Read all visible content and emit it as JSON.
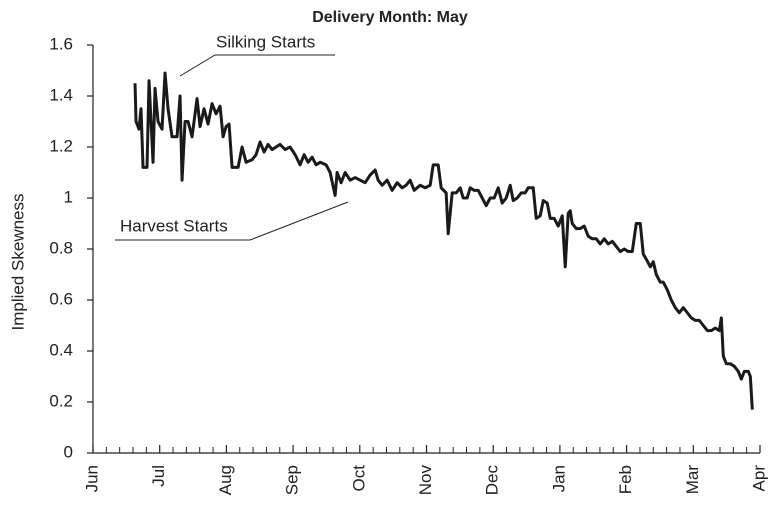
{
  "chart_data": {
    "type": "line",
    "title": "Delivery Month: May",
    "y_label": "Implied Skewness",
    "annotations": [
      "Silking Starts",
      "Harvest Starts"
    ],
    "color": "#1a1a1a",
    "xlim": [
      0,
      10
    ],
    "xticks": [
      {
        "value": 0,
        "label": "Jun"
      },
      {
        "value": 1,
        "label": "Jul"
      },
      {
        "value": 2,
        "label": "Aug"
      },
      {
        "value": 3,
        "label": "Sep"
      },
      {
        "value": 4,
        "label": "Oct"
      },
      {
        "value": 5,
        "label": "Nov"
      },
      {
        "value": 6,
        "label": "Dec"
      },
      {
        "value": 7,
        "label": "Jan"
      },
      {
        "value": 8,
        "label": "Feb"
      },
      {
        "value": 9,
        "label": "Mar"
      },
      {
        "value": 10,
        "label": "Apr"
      }
    ],
    "ylim": [
      0,
      1.6
    ],
    "yticks": [
      0,
      0.2,
      0.4,
      0.6,
      0.8,
      1,
      1.2,
      1.4,
      1.6
    ],
    "x": [
      0.63,
      0.645,
      0.69,
      0.72,
      0.75,
      0.81,
      0.84,
      0.87,
      0.9,
      0.93,
      0.975,
      1.035,
      1.08,
      1.125,
      1.185,
      1.26,
      1.305,
      1.335,
      1.38,
      1.425,
      1.485,
      1.56,
      1.605,
      1.665,
      1.725,
      1.785,
      1.845,
      1.905,
      1.95,
      1.995,
      2.04,
      2.085,
      2.175,
      2.235,
      2.295,
      2.385,
      2.445,
      2.505,
      2.565,
      2.625,
      2.685,
      2.745,
      2.805,
      2.88,
      2.955,
      3.03,
      3.105,
      3.165,
      3.225,
      3.285,
      3.345,
      3.405,
      3.495,
      3.555,
      3.63,
      3.66,
      3.72,
      3.78,
      3.855,
      3.93,
      4.005,
      4.08,
      4.155,
      4.23,
      4.275,
      4.335,
      4.41,
      4.485,
      4.56,
      4.635,
      4.695,
      4.755,
      4.815,
      4.905,
      4.98,
      5.055,
      5.1,
      5.175,
      5.22,
      5.295,
      5.325,
      5.385,
      5.445,
      5.505,
      5.55,
      5.61,
      5.655,
      5.715,
      5.775,
      5.835,
      5.895,
      5.955,
      6.015,
      6.075,
      6.135,
      6.195,
      6.255,
      6.3,
      6.36,
      6.42,
      6.48,
      6.525,
      6.6,
      6.645,
      6.705,
      6.75,
      6.81,
      6.855,
      6.915,
      6.975,
      7.035,
      7.08,
      7.125,
      7.155,
      7.185,
      7.245,
      7.305,
      7.365,
      7.425,
      7.485,
      7.545,
      7.605,
      7.665,
      7.725,
      7.785,
      7.845,
      7.905,
      7.965,
      8.025,
      8.085,
      8.145,
      8.205,
      8.25,
      8.295,
      8.355,
      8.4,
      8.445,
      8.505,
      8.55,
      8.61,
      8.67,
      8.73,
      8.79,
      8.85,
      8.91,
      8.97,
      9.03,
      9.09,
      9.15,
      9.21,
      9.27,
      9.33,
      9.39,
      9.42,
      9.45,
      9.495,
      9.555,
      9.615,
      9.675,
      9.72,
      9.765,
      9.825,
      9.855,
      9.885
    ],
    "values": [
      1.45,
      1.3,
      1.27,
      1.35,
      1.12,
      1.12,
      1.46,
      1.3,
      1.14,
      1.43,
      1.3,
      1.27,
      1.49,
      1.35,
      1.24,
      1.24,
      1.4,
      1.07,
      1.3,
      1.3,
      1.24,
      1.39,
      1.28,
      1.35,
      1.29,
      1.37,
      1.33,
      1.36,
      1.24,
      1.28,
      1.29,
      1.12,
      1.12,
      1.2,
      1.14,
      1.15,
      1.17,
      1.22,
      1.18,
      1.21,
      1.19,
      1.2,
      1.21,
      1.19,
      1.2,
      1.17,
      1.13,
      1.17,
      1.14,
      1.16,
      1.13,
      1.14,
      1.13,
      1.1,
      1.01,
      1.1,
      1.06,
      1.1,
      1.07,
      1.08,
      1.07,
      1.06,
      1.09,
      1.11,
      1.07,
      1.05,
      1.07,
      1.03,
      1.06,
      1.04,
      1.05,
      1.07,
      1.03,
      1.05,
      1.04,
      1.05,
      1.13,
      1.13,
      1.04,
      1.02,
      0.86,
      1.02,
      1.02,
      1.04,
      1.0,
      1.0,
      1.04,
      1.03,
      1.03,
      1.0,
      0.97,
      1.0,
      1.0,
      1.04,
      0.98,
      1.0,
      1.05,
      0.99,
      1.0,
      1.02,
      1.02,
      1.04,
      1.04,
      0.92,
      0.93,
      0.99,
      0.98,
      0.92,
      0.92,
      0.89,
      0.93,
      0.73,
      0.94,
      0.95,
      0.9,
      0.88,
      0.88,
      0.89,
      0.85,
      0.84,
      0.84,
      0.82,
      0.84,
      0.82,
      0.83,
      0.81,
      0.79,
      0.8,
      0.79,
      0.79,
      0.9,
      0.9,
      0.78,
      0.76,
      0.73,
      0.75,
      0.7,
      0.67,
      0.67,
      0.64,
      0.6,
      0.57,
      0.55,
      0.57,
      0.55,
      0.53,
      0.52,
      0.52,
      0.5,
      0.48,
      0.48,
      0.49,
      0.48,
      0.53,
      0.38,
      0.35,
      0.35,
      0.34,
      0.32,
      0.29,
      0.32,
      0.32,
      0.3,
      0.17
    ]
  }
}
